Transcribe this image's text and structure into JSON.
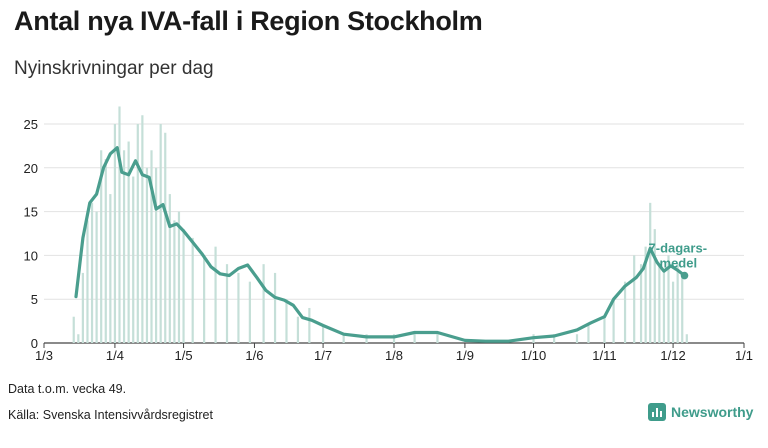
{
  "header": {
    "title": "Antal nya IVA-fall i Region Stockholm",
    "subtitle": "Nyinskrivningar per dag"
  },
  "footer": {
    "note": "Data t.o.m. vecka 49.",
    "source": "Källa: Svenska Intensivvårdsregistret",
    "brand": "Newsworthy"
  },
  "colors": {
    "bars": "#c5dfd8",
    "line": "#4a9e8e",
    "grid": "#e2e2e2",
    "brand": "#3f9c8b"
  },
  "icons": {
    "brand": "bar-chart-icon"
  },
  "chart_data": {
    "type": "bar",
    "title": "Antal nya IVA-fall i Region Stockholm",
    "subtitle": "Nyinskrivningar per dag",
    "xlabel": "",
    "ylabel": "",
    "ylim": [
      0,
      25
    ],
    "yticks": [
      0,
      5,
      10,
      15,
      20,
      25
    ],
    "grid": true,
    "xticks": [
      "1/3",
      "1/4",
      "1/5",
      "1/6",
      "1/7",
      "1/8",
      "1/9",
      "1/10",
      "1/11",
      "1/12",
      "1/1"
    ],
    "series": [
      {
        "type": "bar",
        "x": [
          "2020-03-14",
          "2020-03-16",
          "2020-03-18",
          "2020-03-20",
          "2020-03-22",
          "2020-03-24",
          "2020-03-26",
          "2020-03-28",
          "2020-03-30",
          "2020-04-01",
          "2020-04-03",
          "2020-04-05",
          "2020-04-07",
          "2020-04-09",
          "2020-04-11",
          "2020-04-13",
          "2020-04-15",
          "2020-04-17",
          "2020-04-19",
          "2020-04-21",
          "2020-04-23",
          "2020-04-25",
          "2020-04-27",
          "2020-04-29",
          "2020-05-01",
          "2020-05-05",
          "2020-05-10",
          "2020-05-15",
          "2020-05-20",
          "2020-05-25",
          "2020-05-30",
          "2020-06-05",
          "2020-06-10",
          "2020-06-15",
          "2020-06-20",
          "2020-06-25",
          "2020-07-01",
          "2020-07-10",
          "2020-07-20",
          "2020-08-01",
          "2020-08-10",
          "2020-08-20",
          "2020-09-01",
          "2020-09-10",
          "2020-09-20",
          "2020-10-01",
          "2020-10-10",
          "2020-10-20",
          "2020-10-25",
          "2020-11-01",
          "2020-11-05",
          "2020-11-10",
          "2020-11-14",
          "2020-11-17",
          "2020-11-19",
          "2020-11-21",
          "2020-11-23",
          "2020-11-25",
          "2020-11-27",
          "2020-11-29",
          "2020-12-01",
          "2020-12-03",
          "2020-12-05",
          "2020-12-07"
        ],
        "values": [
          3,
          1,
          8,
          14,
          16,
          15,
          22,
          21,
          17,
          25,
          27,
          22,
          23,
          19,
          25,
          26,
          20,
          22,
          20,
          25,
          24,
          17,
          14,
          15,
          13,
          12,
          10,
          11,
          9,
          8,
          7,
          9,
          8,
          5,
          3,
          4,
          2,
          1,
          1,
          1,
          1,
          1,
          0,
          0,
          0,
          1,
          1,
          1,
          2,
          3,
          5,
          7,
          10,
          9,
          11,
          16,
          13,
          9,
          8,
          10,
          7,
          9,
          8,
          1
        ]
      },
      {
        "name": "7-dagars-medel",
        "type": "line",
        "x": [
          "2020-03-15",
          "2020-03-18",
          "2020-03-21",
          "2020-03-24",
          "2020-03-27",
          "2020-03-30",
          "2020-04-02",
          "2020-04-04",
          "2020-04-07",
          "2020-04-10",
          "2020-04-13",
          "2020-04-16",
          "2020-04-19",
          "2020-04-22",
          "2020-04-25",
          "2020-04-28",
          "2020-05-01",
          "2020-05-05",
          "2020-05-09",
          "2020-05-13",
          "2020-05-17",
          "2020-05-21",
          "2020-05-25",
          "2020-05-29",
          "2020-06-02",
          "2020-06-06",
          "2020-06-10",
          "2020-06-14",
          "2020-06-18",
          "2020-06-22",
          "2020-06-26",
          "2020-07-01",
          "2020-07-10",
          "2020-07-20",
          "2020-08-01",
          "2020-08-10",
          "2020-08-20",
          "2020-09-01",
          "2020-09-10",
          "2020-09-20",
          "2020-10-01",
          "2020-10-10",
          "2020-10-20",
          "2020-10-26",
          "2020-11-01",
          "2020-11-05",
          "2020-11-10",
          "2020-11-15",
          "2020-11-18",
          "2020-11-21",
          "2020-11-24",
          "2020-11-27",
          "2020-11-30",
          "2020-12-03",
          "2020-12-06"
        ],
        "values": [
          5.3,
          12,
          16,
          17,
          20,
          21.6,
          22.3,
          19.5,
          19.2,
          20.8,
          19.2,
          18.9,
          15.3,
          15.8,
          13.3,
          13.6,
          12.8,
          11.5,
          10.2,
          8.7,
          7.9,
          7.7,
          8.5,
          8.9,
          7.5,
          6,
          5.2,
          4.9,
          4.3,
          2.9,
          2.6,
          2,
          1,
          0.7,
          0.7,
          1.2,
          1.2,
          0.3,
          0.2,
          0.2,
          0.6,
          0.8,
          1.5,
          2.3,
          3,
          5,
          6.5,
          7.5,
          8.5,
          10.8,
          9.2,
          8.2,
          8.8,
          8.3,
          7.7
        ]
      }
    ]
  }
}
